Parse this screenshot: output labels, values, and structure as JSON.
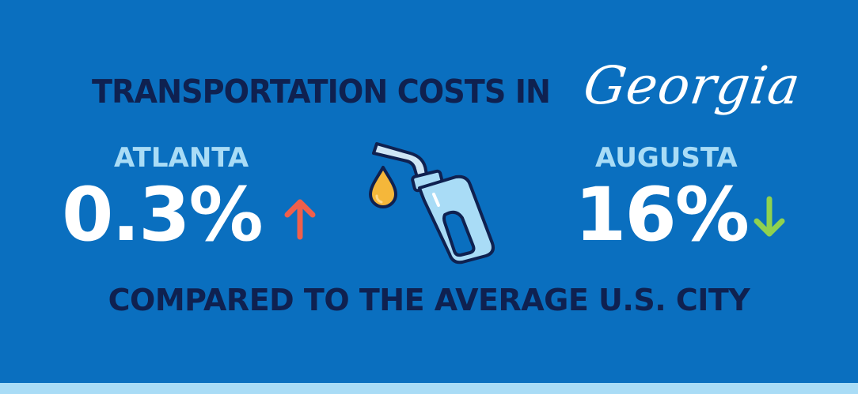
{
  "header": {
    "title": "TRANSPORTATION COSTS IN",
    "state": "Georgia"
  },
  "cities": [
    {
      "name": "ATLANTA",
      "value": "0.3%",
      "direction": "up",
      "arrow_icon": "arrow-up-icon",
      "arrow_color": "#ef5f4b"
    },
    {
      "name": "AUGUSTA",
      "value": "16%",
      "direction": "down",
      "arrow_icon": "arrow-down-icon",
      "arrow_color": "#8fd14f"
    }
  ],
  "footer": {
    "comparison": "COMPARED TO THE AVERAGE U.S. CITY"
  },
  "icons": {
    "center": "fuel-nozzle-icon",
    "drop": "fuel-drop-icon"
  },
  "colors": {
    "background": "#0a6fbf",
    "title": "#0f2150",
    "city_label": "#a9dcf6",
    "value": "#ffffff",
    "bottom_band": "#a9dcf6"
  }
}
